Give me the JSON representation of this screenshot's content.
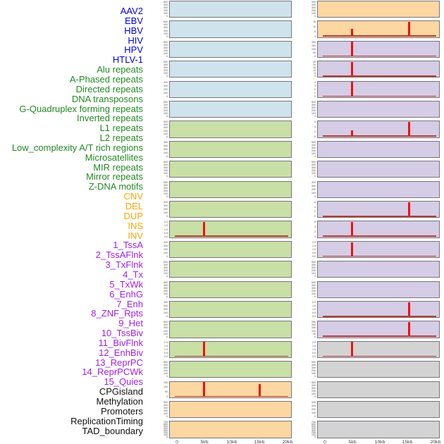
{
  "colors": {
    "label_groups": {
      "virus": "#0000EE",
      "repeat": "#228B22",
      "sv": "#FFA500",
      "state": "#A020F0",
      "other": "#111111"
    },
    "panel_fills": {
      "blue": "#cfe3ec",
      "green": "#c8dfa5",
      "orange": "#fdd7a1",
      "purple": "#d5cce5",
      "gray": "#d3d3d3"
    },
    "spike": "#ee1010",
    "baseline": "#bb3a30",
    "panel_border": "#76767e"
  },
  "chart_data": {
    "type": "bar",
    "description": "Small-multiple genomic signal tracks; two columns of 22 panels, red spikes mark enrichment peaks along a 0-20kb window",
    "x_unit": "kb",
    "x_range": [
      0,
      20
    ],
    "x_ticks": [
      "0",
      "5kb",
      "10kb",
      "15kb",
      "20kb"
    ],
    "feature_labels": [
      {
        "text": "AAV2",
        "group": "virus"
      },
      {
        "text": "EBV",
        "group": "virus"
      },
      {
        "text": "HBV",
        "group": "virus"
      },
      {
        "text": "HIV",
        "group": "virus"
      },
      {
        "text": "HPV",
        "group": "virus"
      },
      {
        "text": "HTLV-1",
        "group": "virus"
      },
      {
        "text": "Alu repeats",
        "group": "repeat"
      },
      {
        "text": "A-Phased repeats",
        "group": "repeat"
      },
      {
        "text": "Directed repeats",
        "group": "repeat"
      },
      {
        "text": "DNA transposons",
        "group": "repeat"
      },
      {
        "text": "G-Quadruplex forming repeats",
        "group": "repeat"
      },
      {
        "text": "Inverted repeats",
        "group": "repeat"
      },
      {
        "text": "L1 repeats",
        "group": "repeat"
      },
      {
        "text": "L2 repeats",
        "group": "repeat"
      },
      {
        "text": "Low_complexity A/T rich regions",
        "group": "repeat"
      },
      {
        "text": "Microsatellites",
        "group": "repeat"
      },
      {
        "text": "MIR repeats",
        "group": "repeat"
      },
      {
        "text": "Mirror repeats",
        "group": "repeat"
      },
      {
        "text": "Z-DNA motifs",
        "group": "repeat"
      },
      {
        "text": "CNV",
        "group": "sv"
      },
      {
        "text": "DEL",
        "group": "sv"
      },
      {
        "text": "DUP",
        "group": "sv"
      },
      {
        "text": "INS",
        "group": "sv"
      },
      {
        "text": "INV",
        "group": "sv"
      },
      {
        "text": "1_TssA",
        "group": "state"
      },
      {
        "text": "2_TssAFlnk",
        "group": "state"
      },
      {
        "text": "3_TxFlnk",
        "group": "state"
      },
      {
        "text": "4_Tx",
        "group": "state"
      },
      {
        "text": "5_TxWk",
        "group": "state"
      },
      {
        "text": "6_EnhG",
        "group": "state"
      },
      {
        "text": "7_Enh",
        "group": "state"
      },
      {
        "text": "8_ZNF_Rpts",
        "group": "state"
      },
      {
        "text": "9_Het",
        "group": "state"
      },
      {
        "text": "10_TssBiv",
        "group": "state"
      },
      {
        "text": "11_BivFlnk",
        "group": "state"
      },
      {
        "text": "12_EnhBiv",
        "group": "state"
      },
      {
        "text": "13_ReprPC",
        "group": "state"
      },
      {
        "text": "14_ReprPCWk",
        "group": "state"
      },
      {
        "text": "15_Quies",
        "group": "state"
      },
      {
        "text": "CPGisland",
        "group": "other"
      },
      {
        "text": "Methylation",
        "group": "other"
      },
      {
        "text": "Promoters",
        "group": "other"
      },
      {
        "text": "ReplicationTiming",
        "group": "other"
      },
      {
        "text": "TAD_boundary",
        "group": "other"
      }
    ],
    "columns": [
      {
        "side": "left",
        "panels": [
          {
            "fill": "blue",
            "yticks": [
              "500",
              "400",
              "300",
              "200",
              "100",
              "0"
            ],
            "spikes": []
          },
          {
            "fill": "blue",
            "yticks": [
              "500",
              "400",
              "300",
              "200",
              "100",
              "0"
            ],
            "spikes": []
          },
          {
            "fill": "blue",
            "yticks": [
              "500",
              "400",
              "300",
              "200",
              "100",
              "0"
            ],
            "spikes": []
          },
          {
            "fill": "blue",
            "yticks": [
              "500",
              "400",
              "300",
              "200",
              "100",
              "0"
            ],
            "spikes": []
          },
          {
            "fill": "blue",
            "yticks": [
              "400",
              "300",
              "200",
              "100",
              "0"
            ],
            "spikes": []
          },
          {
            "fill": "blue",
            "yticks": [
              "500",
              "400",
              "300",
              "200",
              "100",
              "0"
            ],
            "spikes": []
          },
          {
            "fill": "green",
            "yticks": [
              "500",
              "400",
              "300",
              "200",
              "100",
              "0"
            ],
            "spikes": []
          },
          {
            "fill": "green",
            "yticks": [
              "400",
              "300",
              "200",
              "100",
              "0"
            ],
            "spikes": []
          },
          {
            "fill": "green",
            "yticks": [
              "500",
              "400",
              "300",
              "200",
              "100",
              "0"
            ],
            "spikes": []
          },
          {
            "fill": "green",
            "yticks": [
              "500",
              "400",
              "300",
              "200",
              "100",
              "0"
            ],
            "spikes": []
          },
          {
            "fill": "green",
            "yticks": [
              "400",
              "300",
              "200",
              "100",
              "0"
            ],
            "spikes": []
          },
          {
            "fill": "green",
            "yticks": [
              "2.0",
              "1.5",
              "1.0",
              "0.5",
              "0.0"
            ],
            "spikes": [
              {
                "kb": 5,
                "v": 2.1
              }
            ],
            "baseline": true
          },
          {
            "fill": "green",
            "yticks": [
              "400",
              "300",
              "200",
              "100",
              "0"
            ],
            "spikes": []
          },
          {
            "fill": "green",
            "yticks": [
              "500",
              "400",
              "300",
              "200",
              "100",
              "0"
            ],
            "spikes": []
          },
          {
            "fill": "green",
            "yticks": [
              "500",
              "400",
              "300",
              "200",
              "100",
              "0"
            ],
            "spikes": []
          },
          {
            "fill": "green",
            "yticks": [
              "400",
              "300",
              "200",
              "100",
              "0"
            ],
            "spikes": []
          },
          {
            "fill": "green",
            "yticks": [
              "500",
              "400",
              "300",
              "200",
              "100",
              "0"
            ],
            "spikes": []
          },
          {
            "fill": "green",
            "yticks": [
              "2.0",
              "1.5",
              "1.0",
              "0.5",
              "0.0"
            ],
            "spikes": [
              {
                "kb": 5,
                "v": 2.1
              }
            ],
            "baseline": true
          },
          {
            "fill": "green",
            "yticks": [
              "500",
              "400",
              "300",
              "200",
              "100",
              "0"
            ],
            "spikes": []
          },
          {
            "fill": "orange",
            "yticks": [
              "150",
              "100",
              "50",
              "0"
            ],
            "spikes": [
              {
                "kb": 5,
                "v": 165
              },
              {
                "kb": 15,
                "v": 128
              }
            ],
            "baseline": true
          },
          {
            "fill": "orange",
            "yticks": [
              "500",
              "400",
              "300",
              "200",
              "100",
              "0"
            ],
            "spikes": []
          },
          {
            "fill": "orange",
            "yticks": [
              "700",
              "600",
              "500",
              "400",
              "300",
              "200",
              "100",
              "0"
            ],
            "spikes": []
          }
        ]
      },
      {
        "side": "right",
        "panels": [
          {
            "fill": "orange",
            "yticks": [
              "500",
              "400",
              "300",
              "200",
              "100",
              "0"
            ],
            "spikes": []
          },
          {
            "fill": "orange",
            "yticks": [
              "15",
              "10",
              "5",
              "0"
            ],
            "spikes": [
              {
                "kb": 5,
                "v": 8
              },
              {
                "kb": 15.3,
                "v": 16
              }
            ],
            "baseline": true
          },
          {
            "fill": "purple",
            "yticks": [
              "200",
              "150",
              "100",
              "50",
              "0"
            ],
            "spikes": [
              {
                "kb": 5,
                "v": 210
              }
            ],
            "baseline": true
          },
          {
            "fill": "purple",
            "yticks": [
              "25",
              "20",
              "15",
              "10",
              "5",
              "0"
            ],
            "spikes": [
              {
                "kb": 5,
                "v": 26
              }
            ],
            "baseline": true
          },
          {
            "fill": "purple",
            "yticks": [
              "4",
              "3",
              "2",
              "1",
              "0"
            ],
            "spikes": [
              {
                "kb": 5,
                "v": 4.2
              }
            ],
            "baseline": true
          },
          {
            "fill": "purple",
            "yticks": [
              "500",
              "400",
              "300",
              "200",
              "100",
              "0"
            ],
            "spikes": []
          },
          {
            "fill": "purple",
            "yticks": [
              "6",
              "4",
              "2",
              "0"
            ],
            "spikes": [
              {
                "kb": 5,
                "v": 2.5
              },
              {
                "kb": 15.3,
                "v": 6.3
              }
            ],
            "baseline": true
          },
          {
            "fill": "purple",
            "yticks": [
              "500",
              "400",
              "300",
              "200",
              "100",
              "0"
            ],
            "spikes": []
          },
          {
            "fill": "purple",
            "yticks": [
              "500",
              "400",
              "300",
              "200",
              "100",
              "0"
            ],
            "spikes": []
          },
          {
            "fill": "purple",
            "yticks": [
              "400",
              "300",
              "200",
              "100",
              "0"
            ],
            "spikes": []
          },
          {
            "fill": "purple",
            "yticks": [
              "6",
              "4",
              "2",
              "0"
            ],
            "spikes": [
              {
                "kb": 15.3,
                "v": 6.3
              }
            ],
            "baseline": true,
            "thick_baseline": true
          },
          {
            "fill": "purple",
            "yticks": [
              "6",
              "4",
              "2",
              "0"
            ],
            "spikes": [
              {
                "kb": 5,
                "v": 6.3
              }
            ],
            "baseline": true
          },
          {
            "fill": "purple",
            "yticks": [
              "2.0",
              "1.5",
              "1.0",
              "0.5",
              "0.0"
            ],
            "spikes": [
              {
                "kb": 5,
                "v": 1.9
              }
            ],
            "baseline": true
          },
          {
            "fill": "purple",
            "yticks": [
              "500",
              "400",
              "300",
              "200",
              "100",
              "0"
            ],
            "spikes": []
          },
          {
            "fill": "purple",
            "yticks": [
              "500",
              "400",
              "300",
              "200",
              "100",
              "0"
            ],
            "spikes": []
          },
          {
            "fill": "purple",
            "yticks": [
              "2.0",
              "1.5",
              "1.0",
              "0.5",
              "0.0"
            ],
            "spikes": [
              {
                "kb": 15.3,
                "v": 2.1
              }
            ],
            "baseline": true,
            "thick_baseline": true
          },
          {
            "fill": "purple",
            "yticks": [
              "250",
              "200",
              "150",
              "100",
              "50",
              "0"
            ],
            "spikes": [
              {
                "kb": 15.3,
                "v": 260
              }
            ],
            "baseline": true
          },
          {
            "fill": "gray",
            "yticks": [
              "2.0",
              "1.5",
              "1.0",
              "0.5",
              "0.0"
            ],
            "spikes": [
              {
                "kb": 5,
                "v": 2.1
              }
            ],
            "baseline": true
          },
          {
            "fill": "gray",
            "yticks": [
              "500",
              "400",
              "300",
              "200",
              "100",
              "0"
            ],
            "spikes": []
          },
          {
            "fill": "gray",
            "yticks": [
              "500",
              "400",
              "300",
              "200",
              "100",
              "0"
            ],
            "spikes": []
          },
          {
            "fill": "gray",
            "yticks": [
              "400",
              "300",
              "200",
              "100",
              "0"
            ],
            "spikes": []
          },
          {
            "fill": "gray",
            "yticks": [
              "700",
              "600",
              "500",
              "400",
              "300",
              "200",
              "100",
              "0"
            ],
            "spikes": []
          }
        ]
      }
    ]
  }
}
